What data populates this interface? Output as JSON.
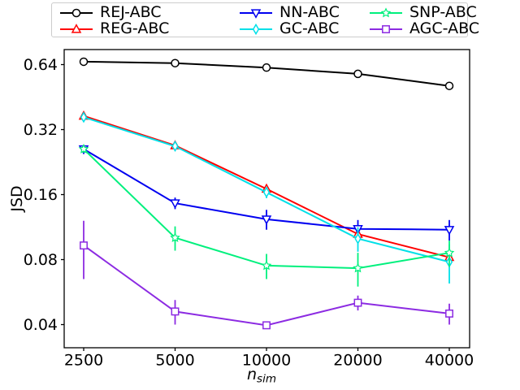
{
  "figure": {
    "background": "#ffffff"
  },
  "chart_data": {
    "type": "line",
    "title": "",
    "ylabel": "JSD",
    "xlabel_main": "n",
    "xlabel_sub": "sim",
    "x_scale": "log2",
    "y_scale": "log2",
    "x": [
      2500,
      5000,
      10000,
      20000,
      40000
    ],
    "xtick_labels": [
      "2500",
      "5000",
      "10000",
      "20000",
      "40000"
    ],
    "yticks": [
      0.64,
      0.32,
      0.16,
      0.08,
      0.04
    ],
    "ytick_labels": [
      "0.64",
      "0.32",
      "0.16",
      "0.08",
      "0.04"
    ],
    "xlim": [
      2160,
      46700
    ],
    "ylim": [
      0.0312,
      0.755
    ],
    "grid": false,
    "legend_position": "top",
    "legend_columns": 3,
    "error_bars": true,
    "series": [
      {
        "name": "REJ-ABC",
        "color": "#000000",
        "marker": "circle",
        "values": [
          0.66,
          0.65,
          0.62,
          0.58,
          0.51
        ],
        "yerr": [
          0.003,
          0.003,
          0.004,
          0.004,
          0.005
        ]
      },
      {
        "name": "REG-ABC",
        "color": "#ff0000",
        "marker": "triangle-up",
        "values": [
          0.37,
          0.27,
          0.17,
          0.105,
          0.082
        ],
        "yerr": [
          0.008,
          0.007,
          0.006,
          0.005,
          0.004
        ]
      },
      {
        "name": "NN-ABC",
        "color": "#0000f0",
        "marker": "triangle-down",
        "values": [
          0.26,
          0.146,
          0.123,
          0.111,
          0.11
        ],
        "yerr": [
          0.006,
          0.009,
          0.013,
          0.011,
          0.012
        ]
      },
      {
        "name": "GC-ABC",
        "color": "#00e0e8",
        "marker": "thin-diamond",
        "values": [
          0.365,
          0.268,
          0.164,
          0.1,
          0.078
        ],
        "yerr": [
          0.008,
          0.009,
          0.01,
          0.013,
          0.016
        ]
      },
      {
        "name": "SNP-ABC",
        "color": "#00f07d",
        "marker": "star",
        "values": [
          0.26,
          0.101,
          0.075,
          0.073,
          0.086
        ],
        "yerr": [
          0.01,
          0.013,
          0.01,
          0.013,
          0.012
        ]
      },
      {
        "name": "AGC-ABC",
        "color": "#8c2be2",
        "marker": "square",
        "values": [
          0.093,
          0.046,
          0.0397,
          0.0505,
          0.045
        ],
        "yerr": [
          0.028,
          0.006,
          0.003,
          0.004,
          0.005
        ]
      }
    ]
  }
}
